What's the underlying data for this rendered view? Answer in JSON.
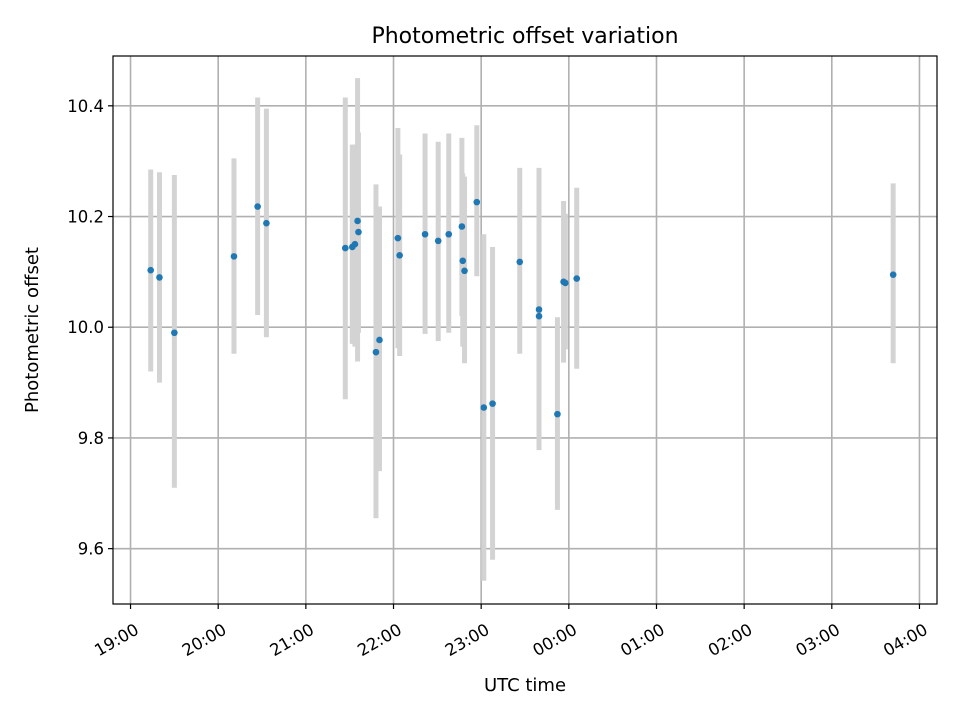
{
  "chart_data": {
    "type": "scatter",
    "title": "Photometric offset variation",
    "xlabel": "UTC time",
    "ylabel": "Photometric offset",
    "x_unit": "UTC hour (hours after midnight of first day; values above 24 fall on the next day)",
    "xlim": [
      18.8,
      28.2
    ],
    "ylim": [
      9.5,
      10.49
    ],
    "grid": true,
    "x_ticks": [
      {
        "value": 19,
        "label": "19:00"
      },
      {
        "value": 20,
        "label": "20:00"
      },
      {
        "value": 21,
        "label": "21:00"
      },
      {
        "value": 22,
        "label": "22:00"
      },
      {
        "value": 23,
        "label": "23:00"
      },
      {
        "value": 24,
        "label": "00:00"
      },
      {
        "value": 25,
        "label": "01:00"
      },
      {
        "value": 26,
        "label": "02:00"
      },
      {
        "value": 27,
        "label": "03:00"
      },
      {
        "value": 28,
        "label": "04:00"
      }
    ],
    "y_ticks": [
      {
        "value": 9.6,
        "label": "9.6"
      },
      {
        "value": 9.8,
        "label": "9.8"
      },
      {
        "value": 10.0,
        "label": "10.0"
      },
      {
        "value": 10.2,
        "label": "10.2"
      },
      {
        "value": 10.4,
        "label": "10.4"
      }
    ],
    "point_color": "#1f77b4",
    "errorbar_color": "#d3d3d3",
    "points": [
      {
        "x": 19.23,
        "y": 10.103,
        "ylow": 9.92,
        "yhigh": 10.285
      },
      {
        "x": 19.33,
        "y": 10.09,
        "ylow": 9.9,
        "yhigh": 10.28
      },
      {
        "x": 19.5,
        "y": 9.99,
        "ylow": 9.71,
        "yhigh": 10.275
      },
      {
        "x": 20.18,
        "y": 10.128,
        "ylow": 9.952,
        "yhigh": 10.305
      },
      {
        "x": 20.45,
        "y": 10.218,
        "ylow": 10.022,
        "yhigh": 10.415
      },
      {
        "x": 20.55,
        "y": 10.188,
        "ylow": 9.982,
        "yhigh": 10.395
      },
      {
        "x": 21.45,
        "y": 10.143,
        "ylow": 9.87,
        "yhigh": 10.415
      },
      {
        "x": 21.53,
        "y": 10.145,
        "ylow": 9.97,
        "yhigh": 10.33
      },
      {
        "x": 21.56,
        "y": 10.15,
        "ylow": 9.965,
        "yhigh": 10.33
      },
      {
        "x": 21.59,
        "y": 10.192,
        "ylow": 9.938,
        "yhigh": 10.45
      },
      {
        "x": 21.6,
        "y": 10.172,
        "ylow": 9.99,
        "yhigh": 10.352
      },
      {
        "x": 21.8,
        "y": 9.955,
        "ylow": 9.655,
        "yhigh": 10.258
      },
      {
        "x": 21.84,
        "y": 9.977,
        "ylow": 9.74,
        "yhigh": 10.218
      },
      {
        "x": 22.05,
        "y": 10.161,
        "ylow": 9.962,
        "yhigh": 10.36
      },
      {
        "x": 22.07,
        "y": 10.13,
        "ylow": 9.948,
        "yhigh": 10.312
      },
      {
        "x": 22.36,
        "y": 10.168,
        "ylow": 9.988,
        "yhigh": 10.35
      },
      {
        "x": 22.51,
        "y": 10.156,
        "ylow": 9.975,
        "yhigh": 10.335
      },
      {
        "x": 22.63,
        "y": 10.168,
        "ylow": 9.99,
        "yhigh": 10.35
      },
      {
        "x": 22.78,
        "y": 10.182,
        "ylow": 10.02,
        "yhigh": 10.342
      },
      {
        "x": 22.79,
        "y": 10.12,
        "ylow": 9.965,
        "yhigh": 10.278
      },
      {
        "x": 22.81,
        "y": 10.102,
        "ylow": 9.935,
        "yhigh": 10.272
      },
      {
        "x": 22.95,
        "y": 10.226,
        "ylow": 10.092,
        "yhigh": 10.365
      },
      {
        "x": 23.03,
        "y": 9.855,
        "ylow": 9.542,
        "yhigh": 10.168
      },
      {
        "x": 23.13,
        "y": 9.862,
        "ylow": 9.58,
        "yhigh": 10.145
      },
      {
        "x": 23.44,
        "y": 10.118,
        "ylow": 9.952,
        "yhigh": 10.288
      },
      {
        "x": 23.66,
        "y": 10.032,
        "ylow": 9.778,
        "yhigh": 10.288
      },
      {
        "x": 23.66,
        "y": 10.02,
        "ylow": 9.87,
        "yhigh": 10.17
      },
      {
        "x": 23.87,
        "y": 9.843,
        "ylow": 9.67,
        "yhigh": 10.018
      },
      {
        "x": 23.94,
        "y": 10.082,
        "ylow": 9.936,
        "yhigh": 10.228
      },
      {
        "x": 23.96,
        "y": 10.08,
        "ylow": 9.96,
        "yhigh": 10.205
      },
      {
        "x": 24.09,
        "y": 10.088,
        "ylow": 9.925,
        "yhigh": 10.252
      },
      {
        "x": 27.7,
        "y": 10.095,
        "ylow": 9.935,
        "yhigh": 10.26
      }
    ]
  }
}
